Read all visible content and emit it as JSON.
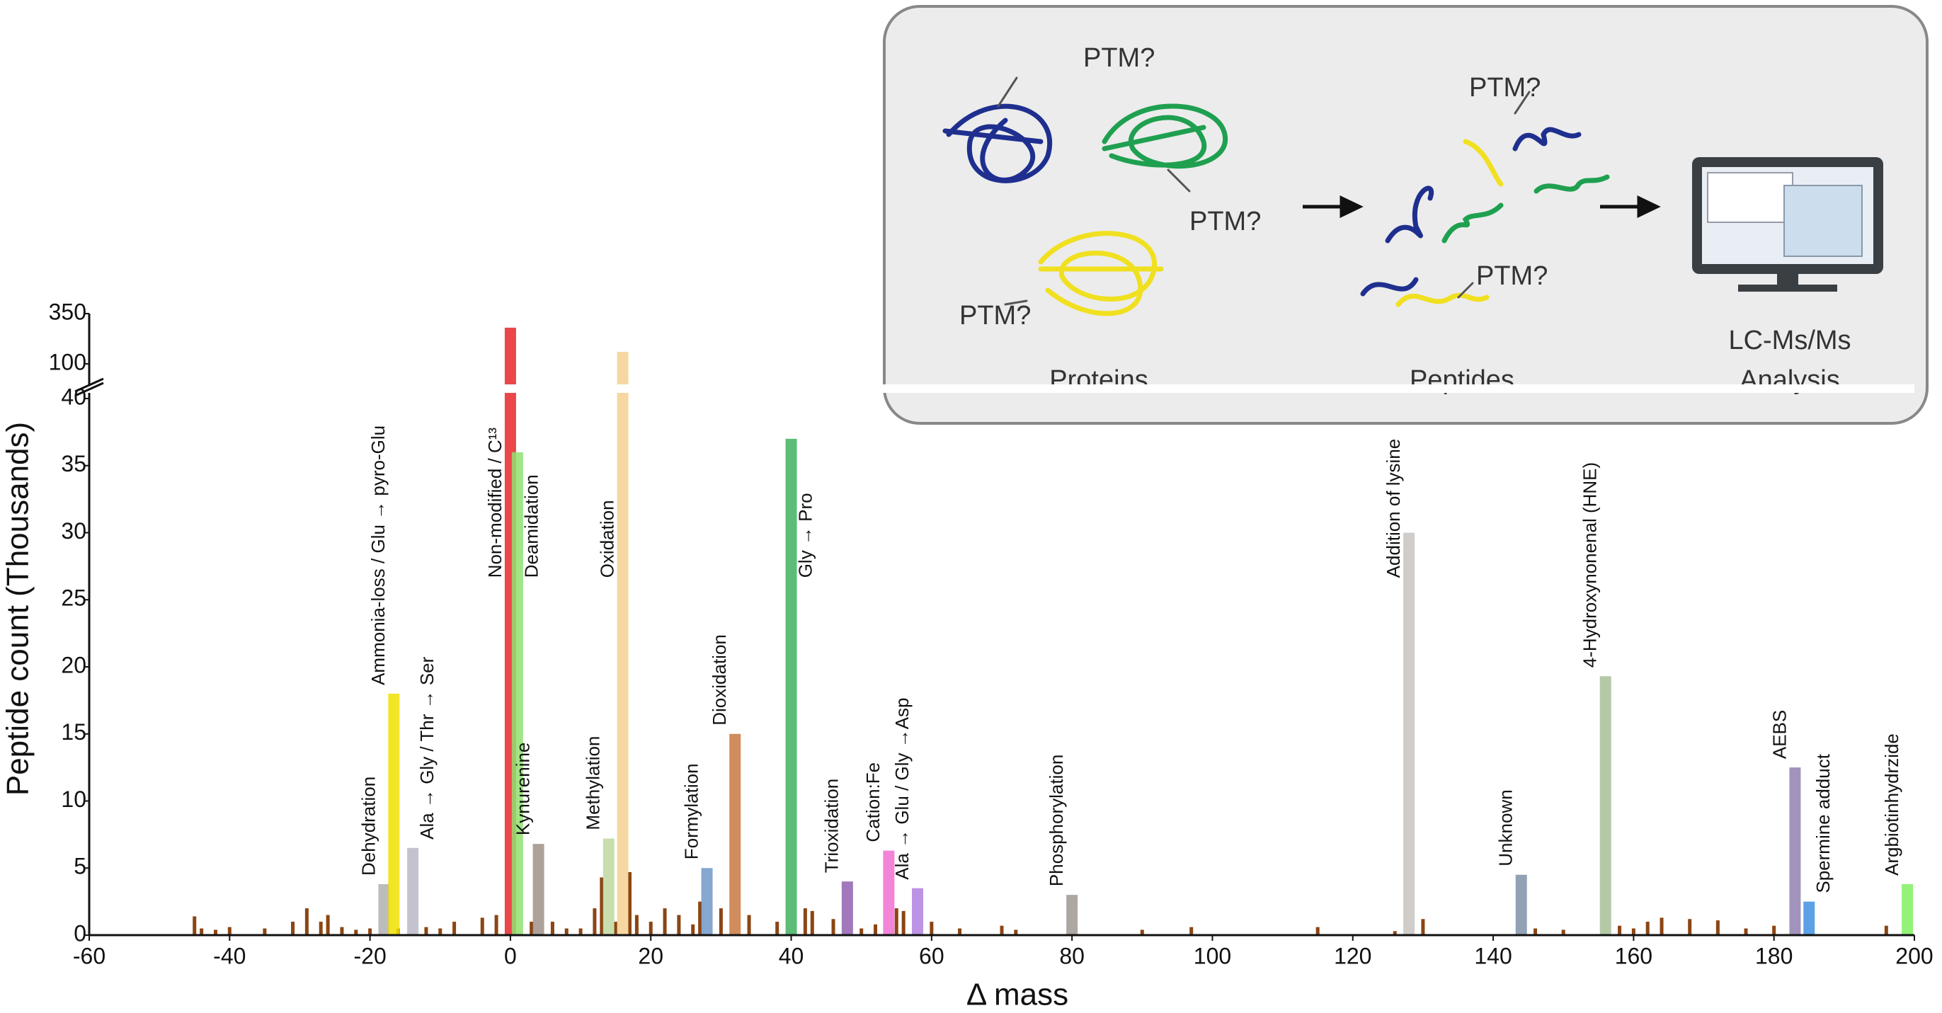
{
  "chart_data": {
    "type": "bar",
    "x_label": "Δ mass",
    "y_label": "Peptide count (Thousands)",
    "xlim": [
      -60,
      200
    ],
    "xticks": [
      -60,
      -40,
      -20,
      0,
      20,
      40,
      60,
      80,
      100,
      120,
      140,
      160,
      180,
      200
    ],
    "ylim": [
      0,
      350
    ],
    "y_break": [
      40,
      100
    ],
    "yticks": [
      0,
      5,
      10,
      15,
      20,
      25,
      30,
      35,
      40,
      100,
      350
    ],
    "background_bars": {
      "color": "#8b4513",
      "x": [
        -45,
        -44,
        -42,
        -40,
        -35,
        -31,
        -29,
        -27,
        -26,
        -24,
        -22,
        -20,
        -16,
        -12,
        -10,
        -8,
        -4,
        -2,
        3,
        6,
        8,
        10,
        12,
        13,
        15,
        17,
        18,
        20,
        22,
        24,
        26,
        27,
        30,
        34,
        38,
        42,
        43,
        46,
        50,
        52,
        55,
        56,
        60,
        64,
        70,
        72,
        90,
        97,
        115,
        126,
        130,
        146,
        150,
        158,
        160,
        162,
        164,
        168,
        172,
        176,
        180,
        196
      ],
      "values": [
        1.4,
        0.5,
        0.4,
        0.6,
        0.5,
        1,
        2,
        1,
        1.5,
        0.6,
        0.4,
        0.5,
        0.5,
        0.6,
        0.5,
        1,
        1.3,
        1.5,
        1,
        1,
        0.5,
        0.5,
        2,
        4.3,
        1,
        4.7,
        1.5,
        1,
        2,
        1.5,
        0.8,
        2.5,
        2,
        1.5,
        1,
        2,
        1.8,
        1.2,
        0.5,
        0.8,
        2,
        1.8,
        1,
        0.5,
        0.7,
        0.4,
        0.4,
        0.6,
        0.6,
        0.3,
        1.2,
        0.5,
        0.4,
        0.7,
        0.5,
        1,
        1.3,
        1.2,
        1.1,
        0.5,
        0.7,
        0.7
      ]
    },
    "highlighted": [
      {
        "label": "Dehydration",
        "x": -18,
        "value": 3.8,
        "color": "#b0b0b0"
      },
      {
        "label": "Ammonia-loss / Glu → pyro-Glu",
        "x": -16.6,
        "value": 18,
        "color": "#f0e000"
      },
      {
        "label": "Ala → Gly / Thr → Ser",
        "x": -13.9,
        "value": 6.5,
        "color": "#b8b8c8"
      },
      {
        "label": "Non-modified / C¹³",
        "x": 0,
        "value": 280,
        "color": "#e8262a"
      },
      {
        "label": "Deamidation",
        "x": 1,
        "value": 36,
        "color": "#90e070"
      },
      {
        "label": "Kynurenine",
        "x": 4,
        "value": 6.8,
        "color": "#a09088"
      },
      {
        "label": "Methylation",
        "x": 14,
        "value": 7.2,
        "color": "#c0d8a0"
      },
      {
        "label": "Oxidation",
        "x": 16,
        "value": 160,
        "color": "#f5d090"
      },
      {
        "label": "Formylation",
        "x": 28,
        "value": 5,
        "color": "#7098c8"
      },
      {
        "label": "Dioxidation",
        "x": 32,
        "value": 15,
        "color": "#c87840"
      },
      {
        "label": "Gly → Pro",
        "x": 40,
        "value": 37,
        "color": "#40b060"
      },
      {
        "label": "Trioxidation",
        "x": 48,
        "value": 4,
        "color": "#9060b0"
      },
      {
        "label": "Cation:Fe",
        "x": 53.9,
        "value": 6.3,
        "color": "#f070d0"
      },
      {
        "label": "Ala → Glu / Gly →Asp",
        "x": 58,
        "value": 3.5,
        "color": "#b080e0"
      },
      {
        "label": "Phosphorylation",
        "x": 80,
        "value": 3,
        "color": "#a09890"
      },
      {
        "label": "Addition of lysine",
        "x": 128,
        "value": 30,
        "color": "#c8c4c0"
      },
      {
        "label": "Unknown",
        "x": 144,
        "value": 4.5,
        "color": "#8090a8"
      },
      {
        "label": "4-Hydroxynonenal (HNE)",
        "x": 156,
        "value": 19.3,
        "color": "#a8c098"
      },
      {
        "label": "AEBS",
        "x": 183,
        "value": 12.5,
        "color": "#9080b0"
      },
      {
        "label": "Spermine adduct",
        "x": 185,
        "value": 2.5,
        "color": "#4090e0"
      },
      {
        "label": "Argbiotinhydrzide",
        "x": 199,
        "value": 3.8,
        "color": "#80f060"
      }
    ]
  },
  "inset": {
    "ptm_labels": [
      "PTM?",
      "PTM?",
      "PTM?",
      "PTM?",
      "PTM?"
    ],
    "proteins": "Proteins",
    "peptides": "Peptides",
    "analysis": [
      "LC-Ms/Ms",
      "Analysis"
    ]
  }
}
